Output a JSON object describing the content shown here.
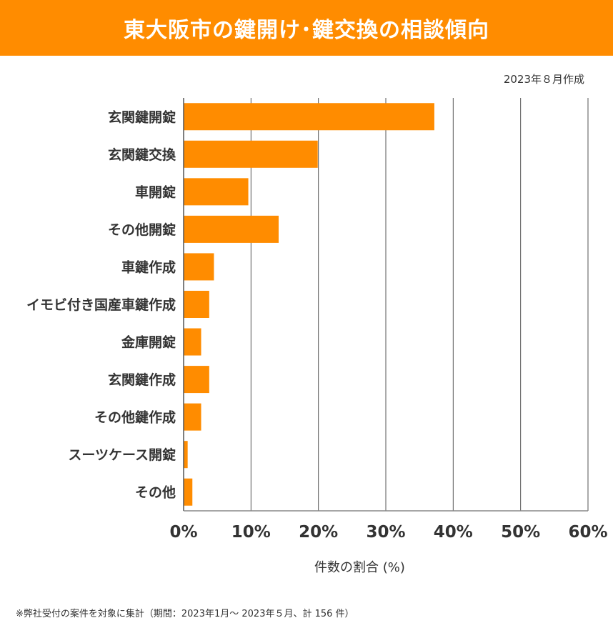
{
  "header": {
    "title": "東大阪市の鍵開け･鍵交換の相談傾向"
  },
  "date_note": "2023年８月作成",
  "footnote": "※弊社受付の案件を対象に集計（期間：2023年1月～ 2023年５月、計 156 件）",
  "chart_data": {
    "type": "bar",
    "orientation": "horizontal",
    "title": "東大阪市の鍵開け･鍵交換の相談傾向",
    "categories": [
      "玄関鍵開錠",
      "玄関鍵交換",
      "車開錠",
      "その他開錠",
      "車鍵作成",
      "イモビ付き国産車鍵作成",
      "金庫開錠",
      "玄関鍵作成",
      "その他鍵作成",
      "スーツケース開錠",
      "その他"
    ],
    "values": [
      37.2,
      19.9,
      9.6,
      14.1,
      4.5,
      3.8,
      2.6,
      3.8,
      2.6,
      0.6,
      1.3
    ],
    "xlabel": "件数の割合 (%)",
    "ylabel": "",
    "xlim": [
      0,
      60
    ],
    "xticks": [
      "0%",
      "10%",
      "20%",
      "30%",
      "40%",
      "50%",
      "60%"
    ],
    "grid": "vertical",
    "legend": "none",
    "colors": {
      "bar": "#ff8c00",
      "header": "#ff8c00"
    }
  }
}
